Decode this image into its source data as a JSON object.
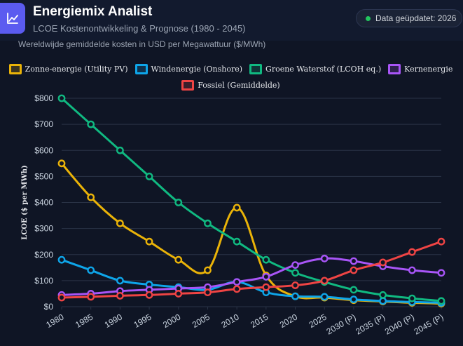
{
  "header": {
    "title": "Energiemix Analist",
    "subtitle": "LCOE Kostenontwikkeling & Prognose (1980 - 2045)",
    "badge": "Data geüpdatet: 2026",
    "logo_icon": "line-chart-icon"
  },
  "caption": "Wereldwijde gemiddelde kosten in USD per Megawattuur ($/MWh)",
  "colors": {
    "background": "#0f1525",
    "accent": "#5b5bf0",
    "status": "#22c55e"
  },
  "chart_data": {
    "type": "line",
    "categories": [
      "1980",
      "1985",
      "1990",
      "1995",
      "2000",
      "2005",
      "2010",
      "2015",
      "2020",
      "2025",
      "2030 (P)",
      "2035 (P)",
      "2040 (P)",
      "2045 (P)"
    ],
    "ylabel": "LCOE ($ per MWh)",
    "ylim": [
      0,
      800
    ],
    "yticks": [
      "$0",
      "$100",
      "$200",
      "$300",
      "$400",
      "$500",
      "$600",
      "$700",
      "$800"
    ],
    "grid": true,
    "legend_position": "top",
    "series": [
      {
        "name": "Zonne-energie (Utility PV)",
        "color": "#eab308",
        "values": [
          550,
          420,
          320,
          250,
          180,
          140,
          380,
          120,
          40,
          35,
          25,
          20,
          15,
          12
        ]
      },
      {
        "name": "Windenergie (Onshore)",
        "color": "#0ea5e9",
        "values": [
          180,
          140,
          100,
          85,
          75,
          65,
          95,
          55,
          40,
          38,
          28,
          22,
          18,
          15
        ]
      },
      {
        "name": "Groene Waterstof (LCOH eq.)",
        "color": "#10b981",
        "values": [
          800,
          700,
          600,
          500,
          400,
          320,
          250,
          180,
          130,
          95,
          65,
          45,
          32,
          22
        ]
      },
      {
        "name": "Kernenergie",
        "color": "#a855f7",
        "values": [
          45,
          50,
          60,
          65,
          70,
          75,
          95,
          115,
          160,
          185,
          175,
          155,
          140,
          130
        ]
      },
      {
        "name": "Fossiel (Gemiddelde)",
        "color": "#ef4444",
        "values": [
          35,
          38,
          42,
          45,
          50,
          55,
          68,
          75,
          82,
          100,
          140,
          170,
          210,
          250
        ]
      }
    ]
  }
}
